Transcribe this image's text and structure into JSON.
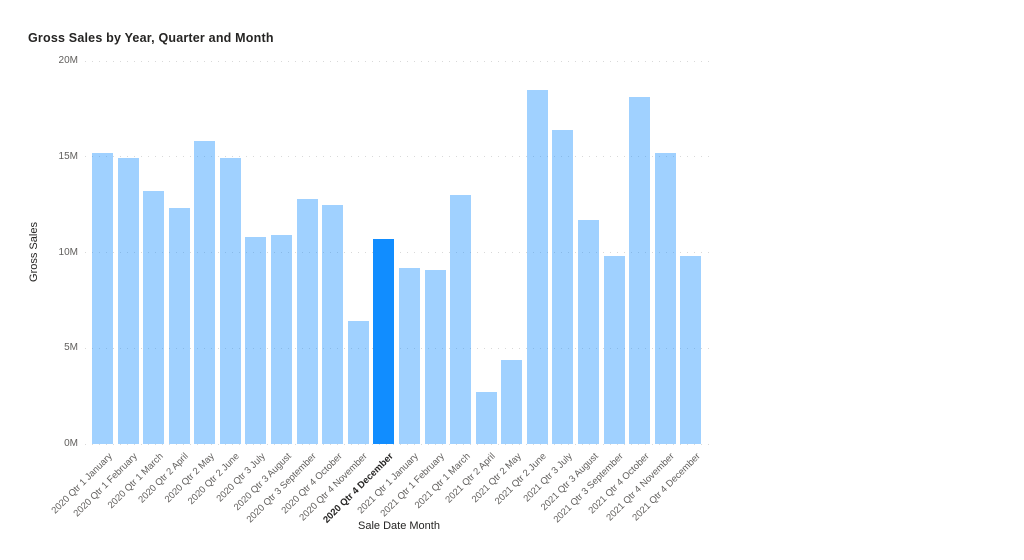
{
  "chart_data": {
    "type": "bar",
    "title": "Gross Sales by Year, Quarter and Month",
    "xlabel": "Sale Date Month",
    "ylabel": "Gross Sales",
    "unit": "millions",
    "ylim": [
      0,
      20
    ],
    "y_ticks": [
      {
        "value": 0,
        "label": "0M"
      },
      {
        "value": 5,
        "label": "5M"
      },
      {
        "value": 10,
        "label": "10M"
      },
      {
        "value": 15,
        "label": "15M"
      },
      {
        "value": 20,
        "label": "20M"
      }
    ],
    "grid": true,
    "legend": false,
    "categories": [
      "2020 Qtr 1 January",
      "2020 Qtr 1 February",
      "2020 Qtr 1 March",
      "2020 Qtr 2 April",
      "2020 Qtr 2 May",
      "2020 Qtr 2 June",
      "2020 Qtr 3 July",
      "2020 Qtr 3 August",
      "2020 Qtr 3 September",
      "2020 Qtr 4 October",
      "2020 Qtr 4 November",
      "2020 Qtr 4 December",
      "2021 Qtr 1 January",
      "2021 Qtr 1 February",
      "2021 Qtr 1 March",
      "2021 Qtr 2 April",
      "2021 Qtr 2 May",
      "2021 Qtr 2 June",
      "2021 Qtr 3 July",
      "2021 Qtr 3 August",
      "2021 Qtr 3 September",
      "2021 Qtr 4 October",
      "2021 Qtr 4 November",
      "2021 Qtr 4 December"
    ],
    "values": [
      15.2,
      14.95,
      13.2,
      12.3,
      15.8,
      14.95,
      10.8,
      10.9,
      12.8,
      12.5,
      6.4,
      10.7,
      9.2,
      9.1,
      13.0,
      2.7,
      4.4,
      18.5,
      16.4,
      11.7,
      9.8,
      18.1,
      15.2,
      9.8
    ],
    "selected_index": 11,
    "selected_category": "2020 Qtr 4 December",
    "colors": {
      "bar_default": "rgba(17,141,255,0.4)",
      "bar_selected": "#118DFF",
      "gridline": "#D9D9D9",
      "title_text": "#252423",
      "axis_text": "#605E5C"
    }
  }
}
